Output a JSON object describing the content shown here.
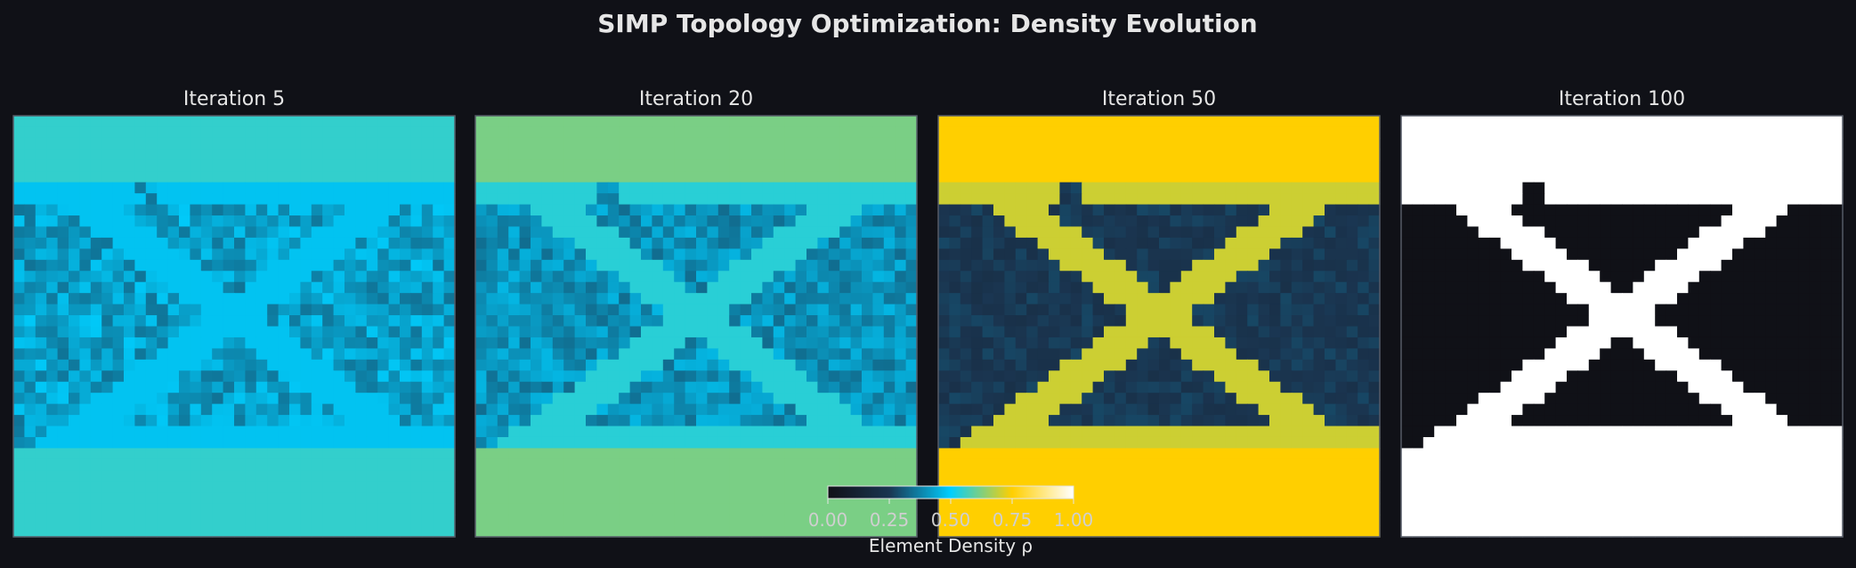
{
  "figure": {
    "title": "SIMP Topology Optimization: Density Evolution",
    "background": "#101117"
  },
  "colormap": {
    "name": "custom-dark-cyan-yellow-white",
    "stops": [
      {
        "v": 0.0,
        "color": "#101117"
      },
      {
        "v": 0.25,
        "color": "#1a3550"
      },
      {
        "v": 0.5,
        "color": "#00cfff"
      },
      {
        "v": 0.75,
        "color": "#ffcf00"
      },
      {
        "v": 1.0,
        "color": "#ffffff"
      }
    ]
  },
  "colorbar": {
    "label": "Element Density ρ",
    "ticks": [
      0.0,
      0.25,
      0.5,
      0.75,
      1.0
    ],
    "tick_labels": [
      "0.00",
      "0.25",
      "0.50",
      "0.75",
      "1.00"
    ],
    "range": [
      0,
      1
    ]
  },
  "chart_data": {
    "type": "heatmap",
    "grid": {
      "cols": 40,
      "rows": 38,
      "solid_top_rows": 6,
      "solid_bottom_rows": 8
    },
    "value_range": [
      0,
      1
    ],
    "panels": [
      {
        "title": "Iteration 5",
        "iteration": 5,
        "solid_value": 0.55,
        "strut_value": 0.48,
        "void_value": 0.42,
        "noise": 0.07
      },
      {
        "title": "Iteration 20",
        "iteration": 20,
        "solid_value": 0.62,
        "strut_value": 0.54,
        "void_value": 0.4,
        "noise": 0.06
      },
      {
        "title": "Iteration 50",
        "iteration": 50,
        "solid_value": 0.75,
        "strut_value": 0.7,
        "void_value": 0.25,
        "noise": 0.03
      },
      {
        "title": "Iteration 100",
        "iteration": 100,
        "solid_value": 1.0,
        "strut_value": 1.0,
        "void_value": 0.0,
        "noise": 0.0
      }
    ]
  }
}
